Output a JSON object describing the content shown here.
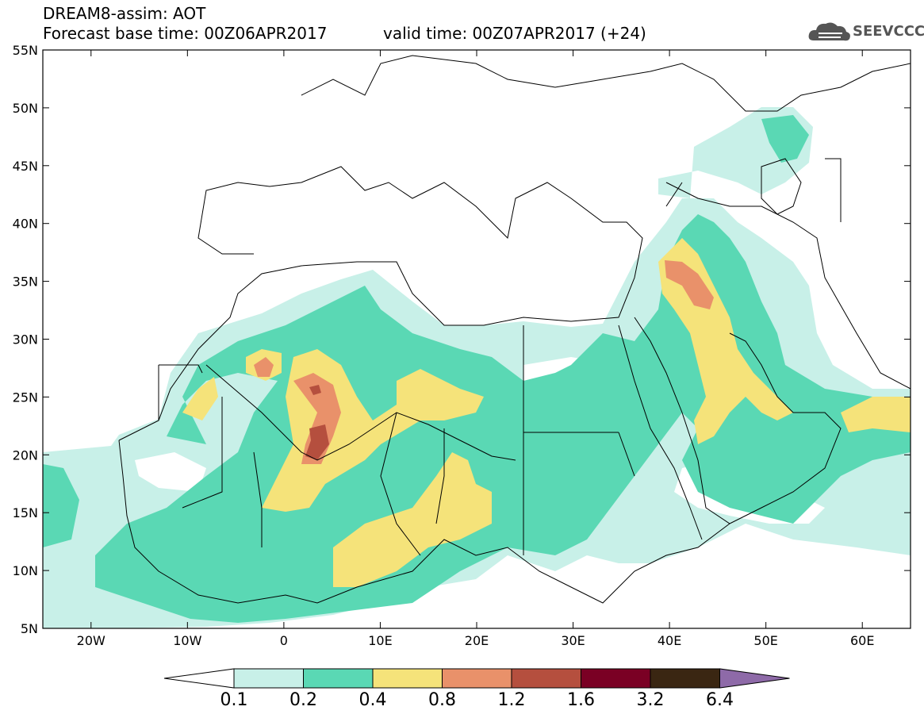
{
  "header": {
    "line1": "DREAM8-assim: AOT",
    "base_time": "Forecast base time: 00Z06APR2017",
    "valid_time": "valid time: 00Z07APR2017 (+24)",
    "logo_text": "SEEVCCC"
  },
  "map": {
    "lat_labels": [
      "55N",
      "50N",
      "45N",
      "40N",
      "35N",
      "30N",
      "25N",
      "20N",
      "15N",
      "10N",
      "5N"
    ],
    "lon_labels": [
      "20W",
      "10W",
      "0",
      "10E",
      "20E",
      "30E",
      "40E",
      "50E",
      "60E"
    ],
    "lat_range": [
      5,
      55
    ],
    "lon_range": [
      -25,
      65
    ]
  },
  "colorbar": {
    "labels": [
      "0.1",
      "0.2",
      "0.4",
      "0.8",
      "1.2",
      "1.6",
      "3.2",
      "6.4"
    ],
    "colors": [
      "#c8f0e8",
      "#5ad8b4",
      "#f5e37a",
      "#e9916a",
      "#b54f3e",
      "#7a0024",
      "#3a2612",
      "#8e6aa8"
    ]
  }
}
